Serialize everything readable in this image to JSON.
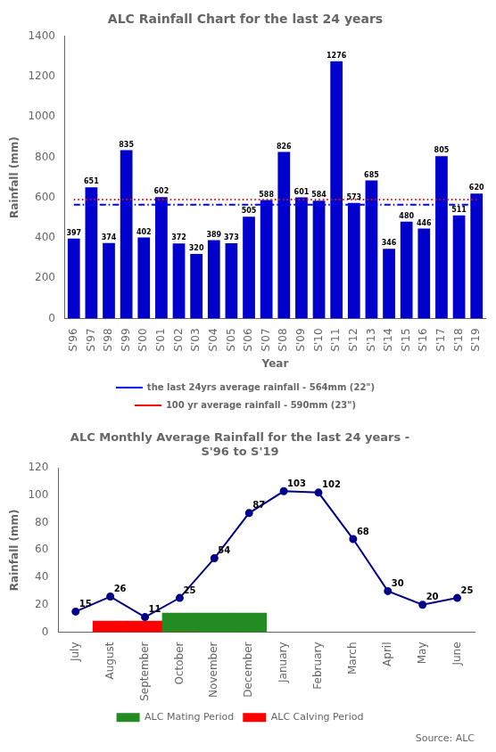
{
  "chart_data": [
    {
      "type": "bar",
      "title": "ALC Rainfall Chart for the last 24 years",
      "xlabel": "Year",
      "ylabel": "Rainfall (mm)",
      "categories": [
        "S'96",
        "S'97",
        "S'98",
        "S'99",
        "S'00",
        "S'01",
        "S'02",
        "S'03",
        "S'04",
        "S'05",
        "S'06",
        "S'07",
        "S'08",
        "S'09",
        "S'10",
        "S'11",
        "S'12",
        "S'13",
        "S'14",
        "S'15",
        "S'16",
        "S'17",
        "S'18",
        "S'19"
      ],
      "values": [
        397,
        651,
        374,
        835,
        402,
        602,
        372,
        320,
        389,
        373,
        505,
        588,
        826,
        601,
        584,
        1276,
        573,
        685,
        346,
        480,
        446,
        805,
        511,
        620
      ],
      "color": "#0000CC",
      "data_labels": true,
      "ylim": [
        0,
        1400
      ],
      "yticks": [
        0,
        200,
        400,
        600,
        800,
        1000,
        1200,
        1400
      ],
      "grid": false,
      "legend": "bottom",
      "reference_lines": [
        {
          "name": "the last 24yrs average rainfall - 564mm (22\")",
          "value": 564,
          "color": "#0000FF",
          "line_style": "dashdot"
        },
        {
          "name": "100 yr average rainfall - 590mm (23\")",
          "value": 590,
          "color": "#FF0000",
          "line_style": "dotted"
        }
      ]
    },
    {
      "type": "line",
      "title": "ALC Monthly Average Rainfall for the last 24 years -\nS'96 to S'19",
      "ylabel": "Rainfall (mm)",
      "categories": [
        "July",
        "August",
        "September",
        "October",
        "November",
        "December",
        "January",
        "February",
        "March",
        "April",
        "May",
        "June"
      ],
      "ylim": [
        0,
        120
      ],
      "yticks": [
        0,
        20,
        40,
        60,
        80,
        100,
        120
      ],
      "grid": false,
      "legend": "bottom",
      "annotation": "Source: ALC",
      "series": [
        {
          "name": "ALC Calving Period",
          "type": "bar",
          "color": "#FF0000",
          "values": [
            null,
            8,
            8,
            8,
            null,
            null,
            null,
            null,
            null,
            null,
            null,
            null
          ]
        },
        {
          "name": "ALC Mating Period",
          "type": "bar",
          "color": "#228B22",
          "values": [
            null,
            null,
            null,
            14,
            14,
            14,
            null,
            null,
            null,
            null,
            null,
            null
          ]
        },
        {
          "type": "line",
          "color": "#00008B",
          "marker": "circle",
          "data_labels": true,
          "values": [
            15,
            26,
            11,
            25,
            54,
            87,
            103,
            102,
            68,
            30,
            20,
            25
          ]
        }
      ]
    }
  ]
}
